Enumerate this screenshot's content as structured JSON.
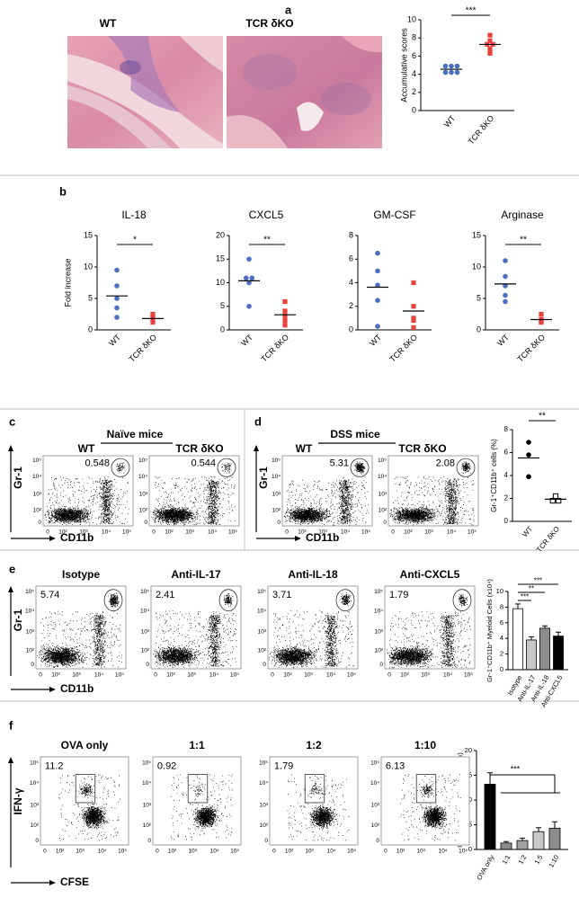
{
  "panel_labels": [
    "a",
    "b",
    "c",
    "d",
    "e",
    "f"
  ],
  "histology": {
    "groups": [
      "WT",
      "TCR δKO"
    ]
  },
  "flow_ticks": [
    "0",
    "10²",
    "10³",
    "10⁴",
    "10⁵"
  ],
  "flow": {
    "c": {
      "title": "Naïve mice",
      "groups": [
        "WT",
        "TCR δKO"
      ],
      "gates": [
        0.548,
        0.544
      ],
      "y_label": "Gr-1",
      "x_label": "CD11b"
    },
    "d": {
      "title": "DSS mice",
      "groups": [
        "WT",
        "TCR δKO"
      ],
      "gates": [
        5.31,
        2.08
      ],
      "y_label": "Gr-1",
      "x_label": "CD11b"
    },
    "e": {
      "groups": [
        "Isotype",
        "Anti-IL-17",
        "Anti-IL-18",
        "Anti-CXCL5"
      ],
      "gates": [
        5.74,
        2.41,
        3.71,
        1.79
      ],
      "y_label": "Gr-1",
      "x_label": "CD11b"
    },
    "f": {
      "groups": [
        "OVA only",
        "1:1",
        "1:2",
        "1:10"
      ],
      "gates": [
        11.2,
        0.92,
        1.79,
        6.13
      ],
      "y_label": "IFN-γ",
      "x_label": "CFSE"
    }
  },
  "chart_data": [
    {
      "type": "dot",
      "ylabel": "Accumulative scores",
      "categories": [
        "WT",
        "TCR δKO"
      ],
      "values": [
        [
          4.9,
          4.9,
          4.9,
          4.2,
          4.2,
          4.2
        ],
        [
          8.3,
          7.7,
          7.3,
          7.3,
          6.8,
          6.3
        ]
      ],
      "colors": [
        "#4a6fc0",
        "#e8413a"
      ],
      "markers": [
        "circle",
        "square"
      ],
      "ylim": [
        0,
        10
      ],
      "yticks": [
        0,
        2,
        4,
        6,
        8,
        10
      ],
      "significance": "***"
    },
    {
      "type": "dot",
      "title": "IL-18",
      "ylabel": "Fold increase",
      "categories": [
        "WT",
        "TCR δKO"
      ],
      "values": [
        [
          9.5,
          7,
          5,
          3.5,
          2
        ],
        [
          2.5,
          2,
          1.8,
          1.5,
          1.2
        ]
      ],
      "colors": [
        "#4a6fc0",
        "#e8413a"
      ],
      "markers": [
        "circle",
        "square"
      ],
      "ylim": [
        0,
        15
      ],
      "yticks": [
        0,
        5,
        10,
        15
      ],
      "significance": "*"
    },
    {
      "type": "dot",
      "title": "CXCL5",
      "categories": [
        "WT",
        "TCR δKO"
      ],
      "values": [
        [
          15,
          11,
          11,
          10,
          5
        ],
        [
          6,
          4,
          3,
          2,
          1
        ]
      ],
      "colors": [
        "#4a6fc0",
        "#e8413a"
      ],
      "markers": [
        "circle",
        "square"
      ],
      "ylim": [
        0,
        20
      ],
      "yticks": [
        0,
        5,
        10,
        15,
        20
      ],
      "significance": "**"
    },
    {
      "type": "dot",
      "title": "GM-CSF",
      "categories": [
        "WT",
        "TCR δKO"
      ],
      "values": [
        [
          6.5,
          5,
          3.8,
          2.5,
          0.3
        ],
        [
          4,
          2,
          1,
          0.8,
          0.2
        ]
      ],
      "colors": [
        "#4a6fc0",
        "#e8413a"
      ],
      "markers": [
        "circle",
        "square"
      ],
      "ylim": [
        0,
        8
      ],
      "yticks": [
        0,
        2,
        4,
        6,
        8
      ]
    },
    {
      "type": "dot",
      "title": "Arginase",
      "categories": [
        "WT",
        "TCR δKO"
      ],
      "values": [
        [
          11,
          8.5,
          7,
          5.5,
          4.5
        ],
        [
          2.5,
          1.7,
          1.5,
          1.3,
          1.2
        ]
      ],
      "colors": [
        "#4a6fc0",
        "#e8413a"
      ],
      "markers": [
        "circle",
        "square"
      ],
      "ylim": [
        0,
        15
      ],
      "yticks": [
        0,
        5,
        10,
        15
      ],
      "significance": "**"
    },
    {
      "type": "dot",
      "ylabel": "Gr-1⁺CD11b⁺ cells (%)",
      "categories": [
        "WT",
        "TCR δKO"
      ],
      "values": [
        [
          6.9,
          5.8,
          3.9
        ],
        [
          2.2,
          1.8,
          1.8
        ]
      ],
      "colors": [
        "#000000",
        "#000000"
      ],
      "markers": [
        "circle",
        "square-open"
      ],
      "ylim": [
        0,
        8
      ],
      "yticks": [
        0,
        2,
        4,
        6,
        8
      ],
      "significance": "**"
    },
    {
      "type": "bar",
      "ylabel": "Gr-1⁺CD11b⁺ Myeloid Cells (x10⁴)",
      "categories": [
        "Isotype",
        "Anti-IL-17",
        "Anti-IL-18",
        "Anti-CXCL5"
      ],
      "values": [
        7.8,
        3.8,
        5.3,
        4.3
      ],
      "errors": [
        0.6,
        0.4,
        0.3,
        0.5
      ],
      "colors": [
        "#ffffff",
        "#c8c8c8",
        "#8c8c8c",
        "#000000"
      ],
      "ylim": [
        0,
        10
      ],
      "yticks": [
        0,
        2,
        4,
        6,
        8,
        10
      ],
      "significance": [
        "***",
        "**",
        "***"
      ]
    },
    {
      "type": "bar",
      "ylabel": "IFN-γ-producing CD8⁺ cells (%)",
      "categories": [
        "OVA only",
        "1:1",
        "1:2",
        "1:5",
        "1:10"
      ],
      "values": [
        13.2,
        1.3,
        1.8,
        3.6,
        4.3
      ],
      "errors": [
        2.3,
        0.3,
        0.5,
        0.8,
        1.3
      ],
      "colors": [
        "#000000",
        "#8c8c8c",
        "#a0a0a0",
        "#c8c8c8",
        "#8c8c8c"
      ],
      "ylim": [
        0,
        20
      ],
      "yticks": [
        0,
        5,
        10,
        15,
        20
      ],
      "significance": "***"
    }
  ]
}
